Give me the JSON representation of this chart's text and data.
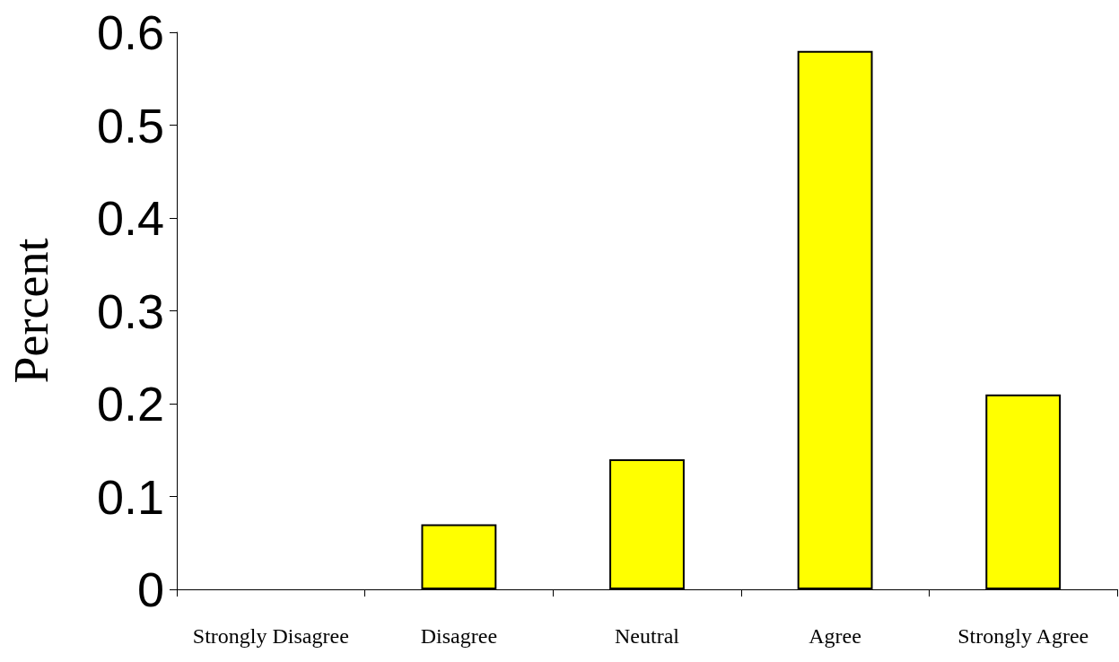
{
  "chart_data": {
    "type": "bar",
    "ylabel": "Percent",
    "categories": [
      "Strongly Disagree",
      "Disagree",
      "Neutral",
      "Agree",
      "Strongly Agree"
    ],
    "series": [
      {
        "color": "#ffff00",
        "values": [
          0,
          0.07,
          0.14,
          0.58,
          0.21
        ]
      }
    ],
    "ylim": [
      0,
      0.6
    ],
    "yticks": [
      0,
      0.1,
      0.2,
      0.3,
      0.4,
      0.5,
      0.6
    ],
    "grid": false
  }
}
